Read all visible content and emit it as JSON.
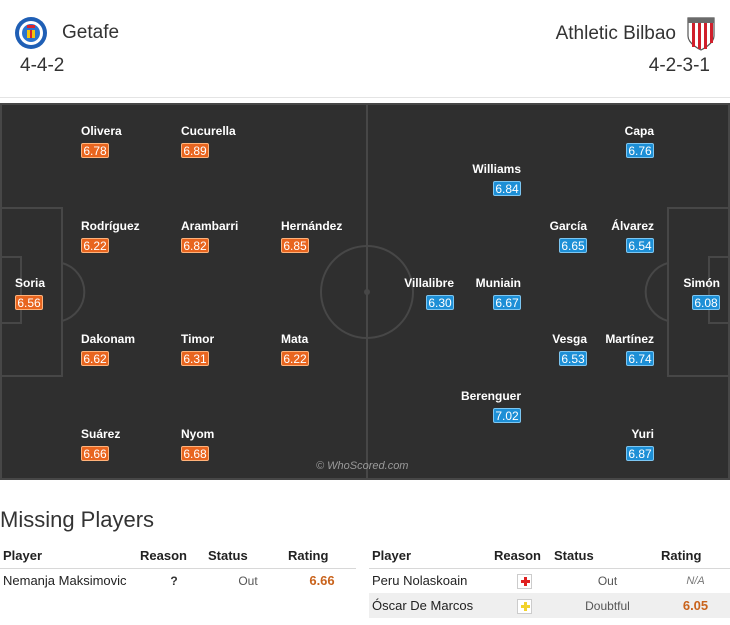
{
  "header": {
    "home": {
      "name": "Getafe",
      "formation": "4-4-2"
    },
    "away": {
      "name": "Athletic Bilbao",
      "formation": "4-2-3-1"
    }
  },
  "pitch": {
    "watermark": "© WhoScored.com",
    "home_players": [
      {
        "name": "Soria",
        "rating": "6.56"
      },
      {
        "name": "Olivera",
        "rating": "6.78"
      },
      {
        "name": "Cucurella",
        "rating": "6.89"
      },
      {
        "name": "Rodríguez",
        "rating": "6.22"
      },
      {
        "name": "Arambarri",
        "rating": "6.82"
      },
      {
        "name": "Hernández",
        "rating": "6.85"
      },
      {
        "name": "Dakonam",
        "rating": "6.62"
      },
      {
        "name": "Timor",
        "rating": "6.31"
      },
      {
        "name": "Mata",
        "rating": "6.22"
      },
      {
        "name": "Suárez",
        "rating": "6.66"
      },
      {
        "name": "Nyom",
        "rating": "6.68"
      }
    ],
    "away_players": [
      {
        "name": "Capa",
        "rating": "6.76"
      },
      {
        "name": "Williams",
        "rating": "6.84"
      },
      {
        "name": "García",
        "rating": "6.65"
      },
      {
        "name": "Álvarez",
        "rating": "6.54"
      },
      {
        "name": "Villalibre",
        "rating": "6.30"
      },
      {
        "name": "Muniain",
        "rating": "6.67"
      },
      {
        "name": "Simón",
        "rating": "6.08"
      },
      {
        "name": "Vesga",
        "rating": "6.53"
      },
      {
        "name": "Martínez",
        "rating": "6.74"
      },
      {
        "name": "Berenguer",
        "rating": "7.02"
      },
      {
        "name": "Yuri",
        "rating": "6.87"
      }
    ]
  },
  "missing": {
    "title": "Missing Players",
    "headers": {
      "player": "Player",
      "reason": "Reason",
      "status": "Status",
      "rating": "Rating"
    },
    "home": [
      {
        "player": "Nemanja Maksimovic",
        "reason": "?",
        "status": "Out",
        "rating": "6.66"
      }
    ],
    "away": [
      {
        "player": "Peru Nolaskoain",
        "reason_icon": "injury-icon",
        "status": "Out",
        "rating": "N/A"
      },
      {
        "player": "Óscar De Marcos",
        "reason_icon": "doubtful-icon",
        "status": "Doubtful",
        "rating": "6.05"
      }
    ]
  },
  "colors": {
    "pitch": "#2f2f2f",
    "home_rating": "#e8651f",
    "away_rating": "#1d8fd6",
    "missing_rating": "#c9631c"
  }
}
